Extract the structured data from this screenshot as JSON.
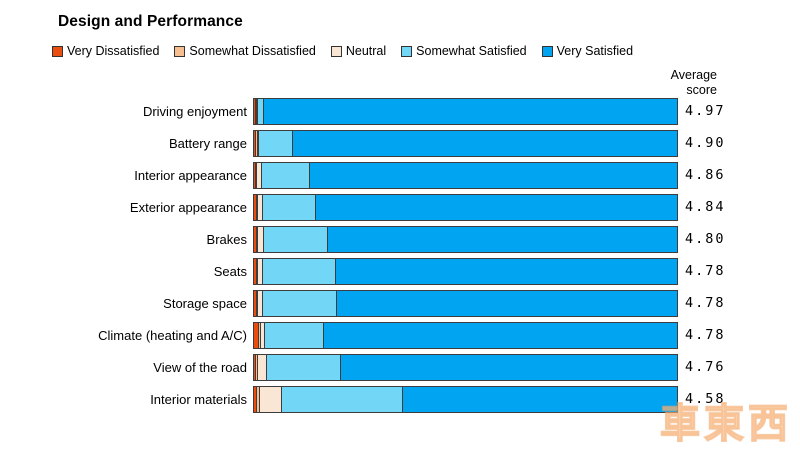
{
  "page": {
    "title": "Design and Performance",
    "average_score_header": "Average score",
    "watermark": "車東西"
  },
  "colors": {
    "very_dissatisfied": "#e94e0e",
    "somewhat_dissatisfied": "#f7bf90",
    "neutral": "#fae6d4",
    "somewhat_satisfied": "#72d7f7",
    "very_satisfied": "#00a4f0",
    "bar_border": "#3d3d3d",
    "watermark_orange": "#f3a05c"
  },
  "chart_data": {
    "type": "bar",
    "orientation": "horizontal",
    "stacked": true,
    "title": "Design and Performance",
    "legend_position": "top",
    "xlim": [
      0,
      100
    ],
    "value_unit": "percent of responses (estimated from bar segment widths)",
    "categories": [
      "Driving enjoyment",
      "Battery range",
      "Interior appearance",
      "Exterior appearance",
      "Brakes",
      "Seats",
      "Storage space",
      "Climate (heating and A/C)",
      "View of the road",
      "Interior materials"
    ],
    "series": [
      {
        "name": "Very Dissatisfied",
        "color": "#e94e0e",
        "values": [
          0.5,
          0.4,
          0.5,
          0.6,
          0.6,
          0.6,
          0.6,
          1.1,
          0.5,
          0.7
        ]
      },
      {
        "name": "Somewhat Dissatisfied",
        "color": "#f7bf90",
        "values": [
          0.1,
          0.5,
          0.1,
          0.1,
          0.1,
          0.1,
          0.1,
          0.6,
          0.5,
          0.7
        ]
      },
      {
        "name": "Neutral",
        "color": "#fae6d4",
        "values": [
          0.2,
          0.2,
          1.1,
          1.3,
          1.5,
          1.3,
          1.4,
          0.8,
          2.0,
          5.2
        ]
      },
      {
        "name": "Somewhat Satisfied",
        "color": "#72d7f7",
        "values": [
          1.4,
          8.1,
          11.4,
          12.5,
          15.1,
          17.3,
          17.4,
          14.0,
          17.6,
          28.6
        ]
      },
      {
        "name": "Very Satisfied",
        "color": "#00a4f0",
        "values": [
          97.8,
          90.8,
          86.9,
          85.5,
          82.7,
          80.7,
          80.5,
          83.5,
          79.4,
          64.8
        ]
      }
    ],
    "average_scores": [
      "4.97",
      "4.90",
      "4.86",
      "4.84",
      "4.80",
      "4.78",
      "4.78",
      "4.78",
      "4.76",
      "4.58"
    ]
  }
}
